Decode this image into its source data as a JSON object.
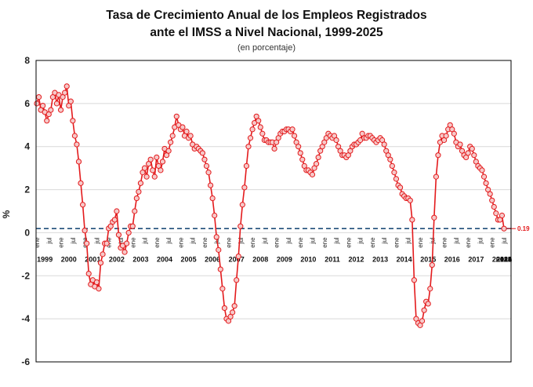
{
  "chart_data": {
    "type": "line",
    "title": "Tasa de Crecimiento Anual de los Empleos Registrados",
    "title2": "ante el IMSS a Nivel Nacional, 1999-2025",
    "subtitle": "(en porcentaje)",
    "ylabel": "%",
    "ylim": [
      -6,
      8
    ],
    "yticks": [
      -6,
      -4,
      -2,
      0,
      2,
      4,
      6,
      8
    ],
    "grid": true,
    "x_start": "1999-01",
    "month_labels": [
      "ene",
      "jul"
    ],
    "years": [
      "1999",
      "2000",
      "2001",
      "2002",
      "2003",
      "2004",
      "2005",
      "2006",
      "2007",
      "2008",
      "2009",
      "2010",
      "2011",
      "2012",
      "2013",
      "2014",
      "2015",
      "2016",
      "2017",
      "2018",
      "2019",
      "2020",
      "2021",
      "2022",
      "2023",
      "2024",
      "2025"
    ],
    "reference_line": {
      "value": 0.19,
      "label": "0.19"
    },
    "line_color": "#e31a1c",
    "marker_fill": "#f6c9c9",
    "reference_color": "#1f4e79",
    "series": [
      {
        "frequency": "monthly",
        "values": [
          6.0,
          6.3,
          5.7,
          5.9,
          5.6,
          5.2,
          5.5,
          5.7,
          6.3,
          6.5,
          6.0,
          6.4,
          5.7,
          6.3,
          6.5,
          6.8,
          5.9,
          6.1,
          5.2,
          4.5,
          4.1,
          3.3,
          2.3,
          1.3,
          0.1,
          -0.5,
          -1.9,
          -2.4,
          -2.2,
          -2.5,
          -2.3,
          -2.6,
          -1.4,
          -1.0,
          -0.5,
          -0.5,
          0.2,
          0.3,
          0.5,
          0.6,
          1.0,
          -0.1,
          -0.7,
          -0.6,
          -0.9,
          -0.5,
          0.0,
          0.3,
          0.3,
          1.0,
          1.6,
          1.9,
          2.3,
          2.8,
          3.0,
          2.6,
          3.2,
          3.4,
          2.9,
          2.6,
          3.5,
          3.1,
          2.9,
          3.3,
          3.9,
          3.6,
          3.8,
          4.2,
          4.5,
          4.9,
          5.4,
          5.0,
          4.8,
          4.9,
          4.5,
          4.7,
          4.4,
          4.5,
          4.1,
          3.9,
          4.0,
          3.9,
          3.8,
          3.7,
          3.4,
          3.1,
          2.8,
          2.2,
          1.6,
          0.8,
          -0.2,
          -0.8,
          -1.7,
          -2.6,
          -3.5,
          -4.0,
          -4.1,
          -3.9,
          -3.7,
          -3.4,
          -2.2,
          -1.1,
          0.3,
          1.3,
          2.1,
          3.1,
          4.0,
          4.4,
          4.8,
          5.1,
          5.4,
          5.2,
          4.9,
          4.6,
          4.3,
          4.3,
          4.2,
          4.2,
          4.2,
          3.9,
          4.2,
          4.4,
          4.6,
          4.7,
          4.7,
          4.8,
          4.8,
          4.7,
          4.8,
          4.5,
          4.2,
          4.0,
          3.7,
          3.4,
          3.1,
          2.9,
          2.9,
          2.8,
          2.7,
          3.0,
          3.2,
          3.5,
          3.8,
          4.0,
          4.2,
          4.4,
          4.6,
          4.5,
          4.4,
          4.5,
          4.3,
          4.0,
          3.8,
          3.6,
          3.6,
          3.5,
          3.6,
          3.8,
          4.0,
          4.1,
          4.1,
          4.2,
          4.3,
          4.6,
          4.4,
          4.4,
          4.5,
          4.5,
          4.4,
          4.3,
          4.2,
          4.3,
          4.4,
          4.3,
          4.1,
          3.8,
          3.6,
          3.4,
          3.1,
          2.8,
          2.5,
          2.2,
          2.1,
          1.8,
          1.7,
          1.6,
          1.6,
          1.5,
          0.6,
          -2.2,
          -4.0,
          -4.2,
          -4.3,
          -4.1,
          -3.6,
          -3.2,
          -3.3,
          -2.6,
          -1.5,
          0.7,
          2.6,
          3.6,
          4.2,
          4.5,
          4.3,
          4.5,
          4.8,
          5.0,
          4.8,
          4.6,
          4.2,
          4.0,
          4.1,
          3.8,
          3.6,
          3.5,
          3.7,
          4.0,
          3.9,
          3.6,
          3.3,
          3.1,
          3.0,
          2.9,
          2.6,
          2.3,
          2.0,
          1.8,
          1.5,
          1.2,
          0.9,
          0.6,
          0.6,
          0.8,
          0.19
        ]
      }
    ]
  }
}
